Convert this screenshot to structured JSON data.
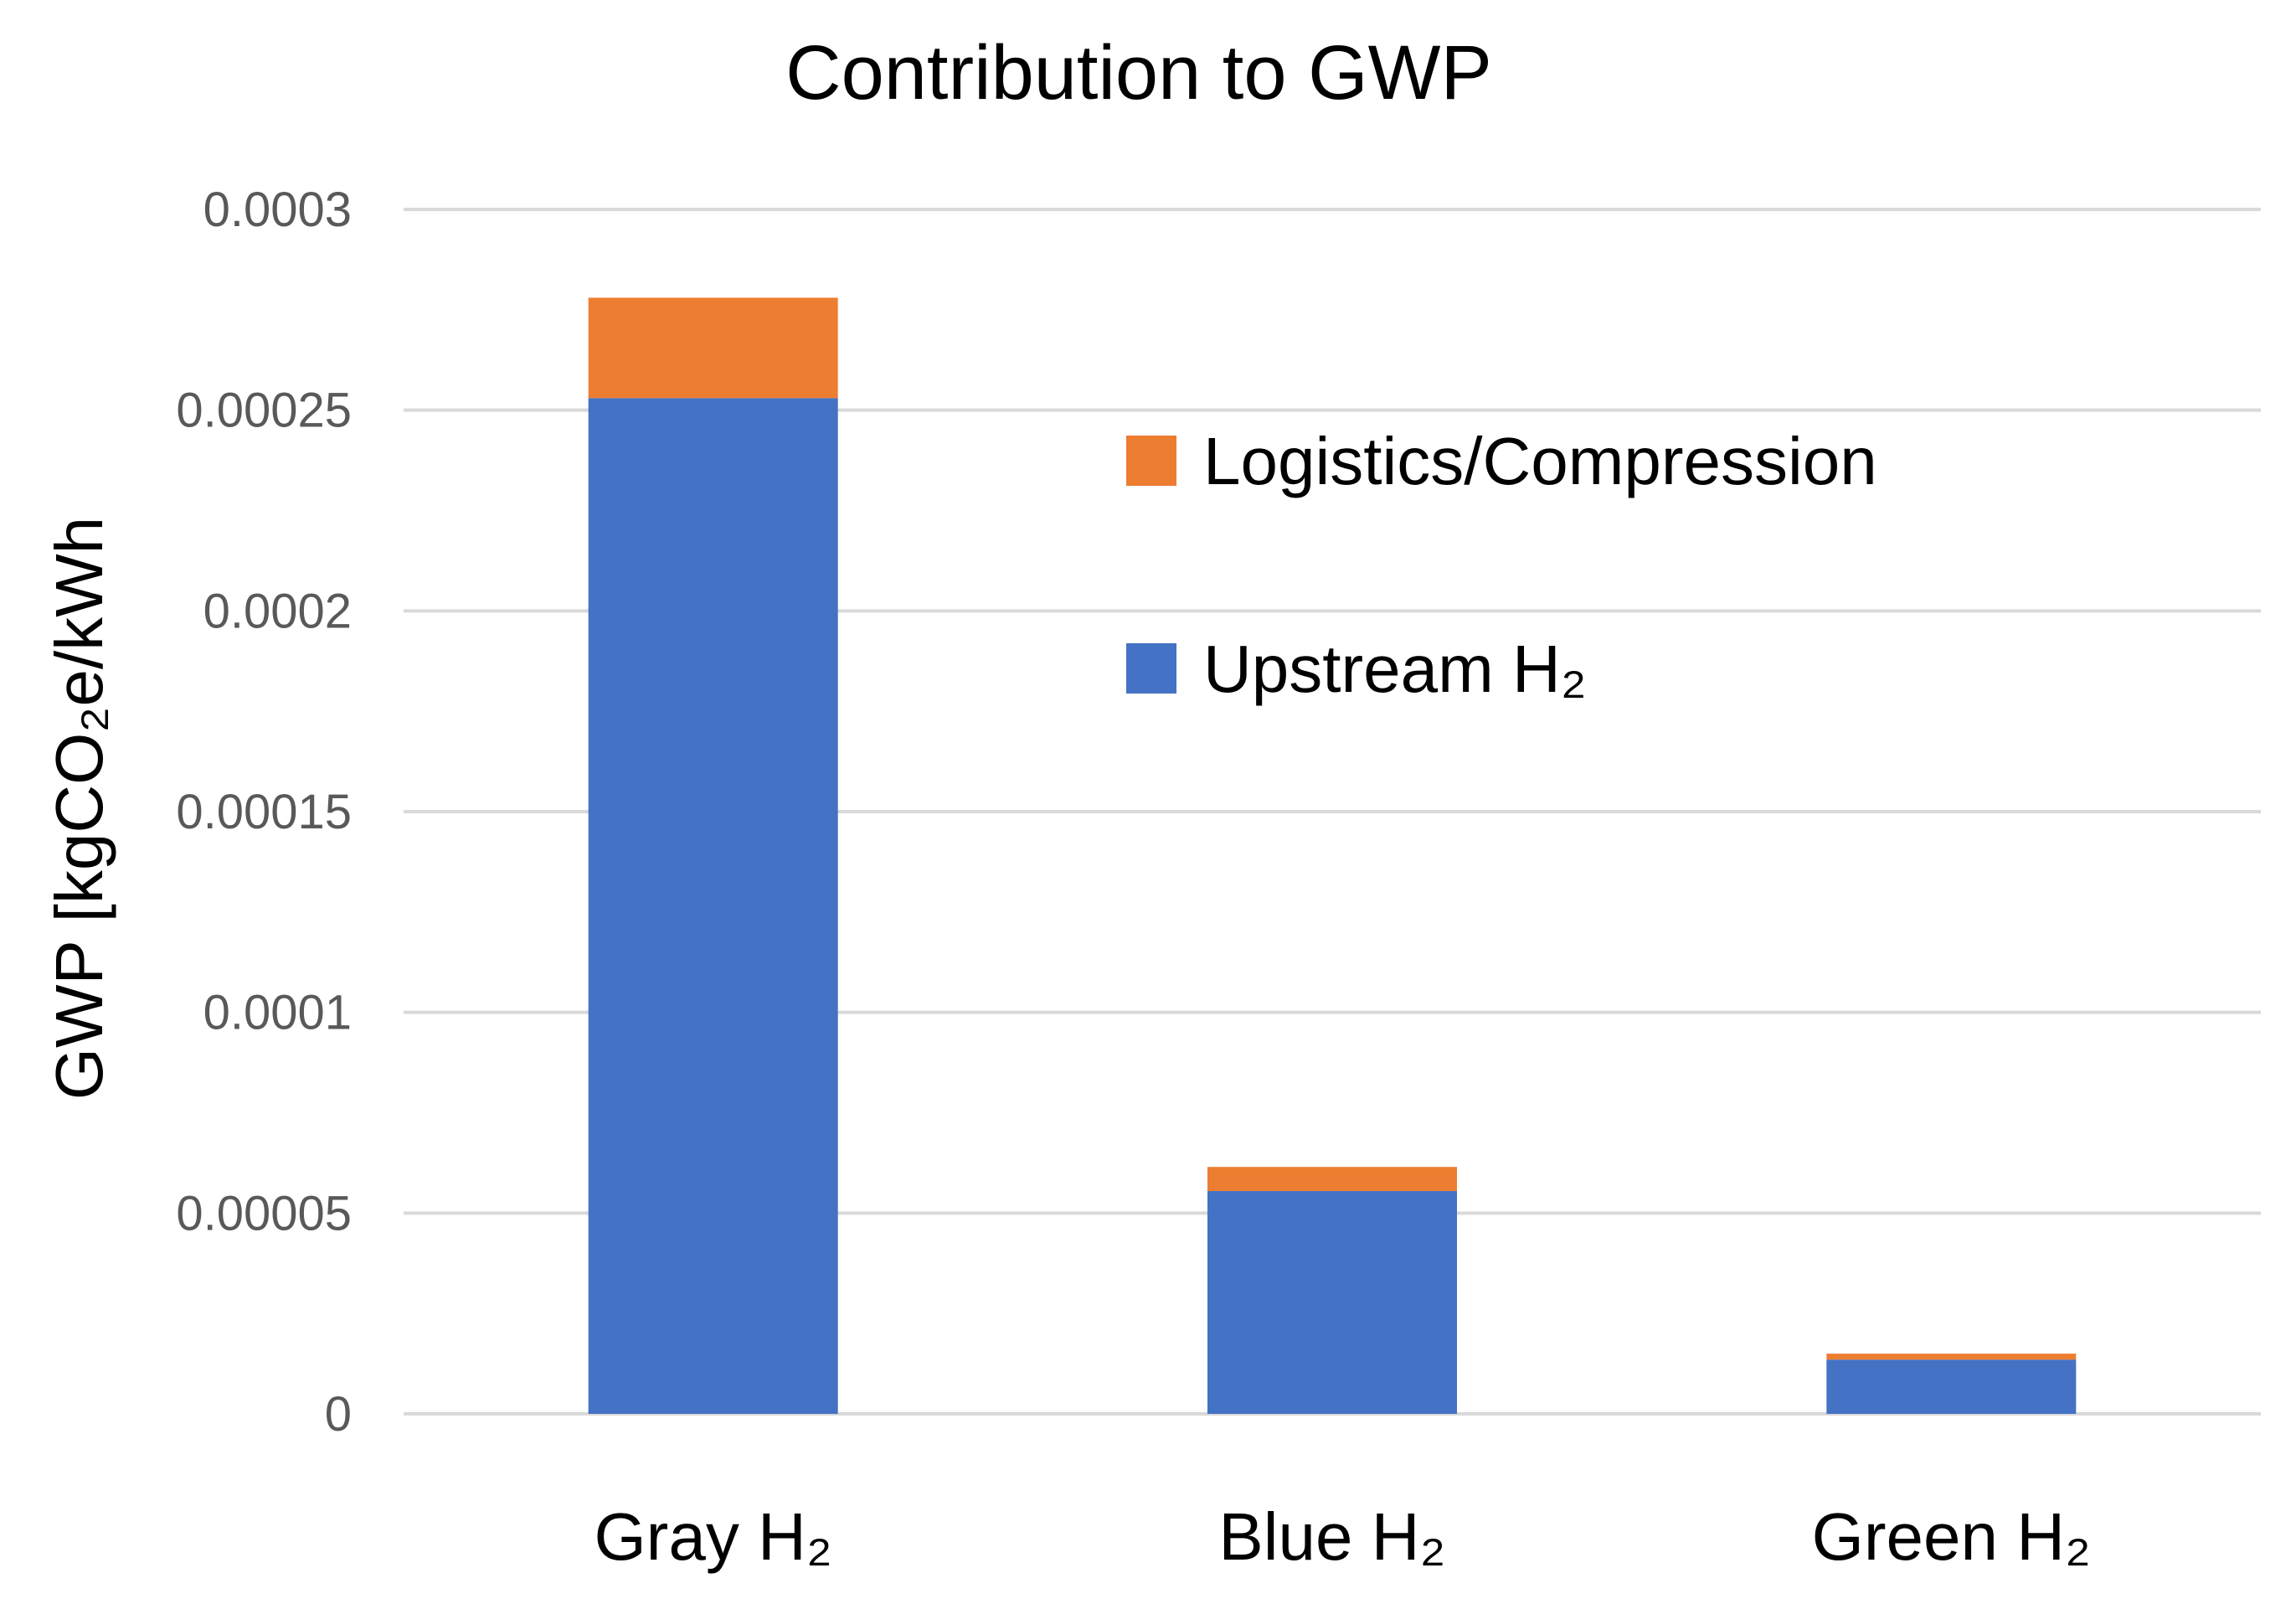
{
  "chart_data": {
    "type": "bar",
    "stacked": true,
    "title": "Contribution to GWP",
    "ylabel": "GWP [kgCO₂e/kWh",
    "xlabel": "",
    "categories": [
      "Gray H₂",
      "Blue H₂",
      "Green H₂"
    ],
    "series": [
      {
        "name": "Upstream H₂",
        "color": "#4472c4",
        "values": [
          0.000253,
          5.55e-05,
          1.35e-05
        ]
      },
      {
        "name": "Logistics/Compression",
        "color": "#ed7d31",
        "values": [
          2.5e-05,
          6e-06,
          1.5e-06
        ]
      }
    ],
    "ylim": [
      0,
      0.0003
    ],
    "yticks": [
      "0",
      "0.00005",
      "0.0001",
      "0.00015",
      "0.0002",
      "0.00025",
      "0.0003"
    ],
    "grid": true,
    "legend_position": "upper-right",
    "legend_order": [
      "Logistics/Compression",
      "Upstream H₂"
    ]
  }
}
